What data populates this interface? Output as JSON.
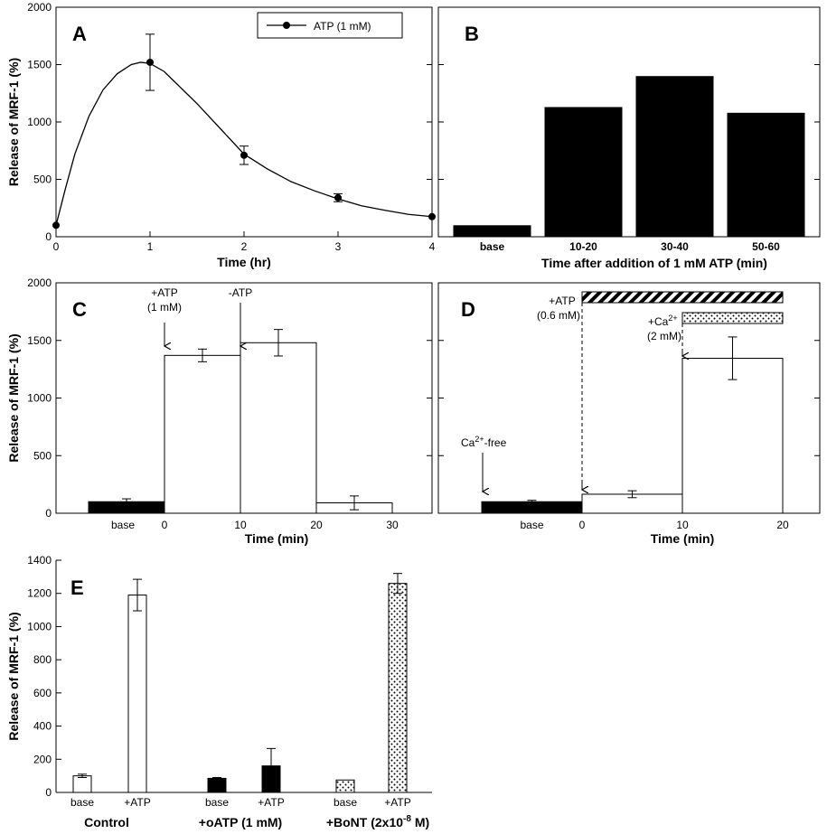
{
  "chart_data": [
    {
      "panel": "A",
      "type": "line",
      "xlabel": "Time (hr)",
      "ylabel": "Release of MRF-1 (%)",
      "xlim": [
        0,
        4
      ],
      "ylim": [
        0,
        2000
      ],
      "xticks": [
        0,
        1,
        2,
        3,
        4
      ],
      "yticks": [
        0,
        500,
        1000,
        1500,
        2000
      ],
      "legend": "ATP (1 mM)",
      "legend_position": "top-right",
      "series": [
        {
          "x": [
            0,
            1,
            2,
            3,
            4
          ],
          "y": [
            100,
            1520,
            710,
            340,
            175
          ],
          "error": [
            0,
            245,
            80,
            35,
            0
          ]
        }
      ],
      "curve": {
        "x": [
          0,
          0.1,
          0.2,
          0.35,
          0.5,
          0.65,
          0.8,
          0.9,
          1,
          1.15,
          1.3,
          1.5,
          1.75,
          2,
          2.25,
          2.5,
          2.75,
          3,
          3.25,
          3.5,
          3.75,
          4
        ],
        "y": [
          100,
          420,
          720,
          1050,
          1280,
          1420,
          1500,
          1520,
          1510,
          1440,
          1320,
          1160,
          940,
          720,
          590,
          480,
          400,
          330,
          270,
          230,
          195,
          175
        ]
      }
    },
    {
      "panel": "B",
      "type": "bar",
      "xlabel": "Time after addition of 1 mM ATP (min)",
      "ylim": [
        0,
        2000
      ],
      "categories": [
        "base",
        "10-20",
        "30-40",
        "50-60"
      ],
      "values": [
        100,
        1130,
        1400,
        1080
      ]
    },
    {
      "panel": "C",
      "type": "bar",
      "xlabel": "Time (min)",
      "ylabel": "Release of MRF-1 (%)",
      "ylim": [
        0,
        2000
      ],
      "yticks": [
        0,
        500,
        1000,
        1500,
        2000
      ],
      "tick_labels": [
        "base",
        "0",
        "10",
        "20",
        "30"
      ],
      "bars": [
        {
          "label": "base",
          "x0": -10,
          "x1": 0,
          "value": 100,
          "error": 25,
          "fill": "black"
        },
        {
          "label": "0-10",
          "x0": 0,
          "x1": 10,
          "value": 1370,
          "error": 55,
          "fill": "white"
        },
        {
          "label": "10-20",
          "x0": 10,
          "x1": 20,
          "value": 1480,
          "error": 115,
          "fill": "white"
        },
        {
          "label": "20-30",
          "x0": 20,
          "x1": 30,
          "value": 90,
          "error": 60,
          "fill": "white"
        }
      ],
      "annotations": [
        {
          "lines": [
            "+ATP",
            "(1 mM)"
          ],
          "at": 0
        },
        {
          "lines": [
            "-ATP"
          ],
          "at": 10
        }
      ]
    },
    {
      "panel": "D",
      "type": "bar",
      "xlabel": "Time (min)",
      "ylim": [
        0,
        2000
      ],
      "tick_labels": [
        "base",
        "0",
        "10",
        "20"
      ],
      "bars": [
        {
          "label": "base",
          "x0": -10,
          "x1": 0,
          "value": 100,
          "error": 12,
          "fill": "black"
        },
        {
          "label": "0-10",
          "x0": 0,
          "x1": 10,
          "value": 165,
          "error": 30,
          "fill": "white"
        },
        {
          "label": "10-20",
          "x0": 10,
          "x1": 20,
          "value": 1345,
          "error": 185,
          "fill": "white"
        }
      ],
      "annotations": [
        {
          "lines": [
            "+ATP",
            "(0.6 mM)"
          ],
          "at": 0,
          "pattern": "hatched",
          "span": [
            0,
            20
          ]
        },
        {
          "lines": [
            "+Ca",
            "2+",
            "(2 mM)"
          ],
          "at": 10,
          "pattern": "dotted",
          "span": [
            10,
            20
          ]
        },
        {
          "lines": [
            "Ca",
            "2+",
            "-free"
          ],
          "at": -6
        }
      ]
    },
    {
      "panel": "E",
      "type": "bar",
      "ylabel": "Release of MRF-1 (%)",
      "ylim": [
        0,
        1400
      ],
      "yticks": [
        0,
        200,
        400,
        600,
        800,
        1000,
        1200,
        1400
      ],
      "groups": [
        {
          "name": "Control",
          "bars": [
            {
              "label": "base",
              "value": 100,
              "error": 10,
              "fill": "white"
            },
            {
              "label": "+ATP",
              "value": 1190,
              "error": 95,
              "fill": "white"
            }
          ]
        },
        {
          "name": "+oATP (1 mM)",
          "bars": [
            {
              "label": "base",
              "value": 85,
              "error": 5,
              "fill": "black"
            },
            {
              "label": "+ATP",
              "value": 160,
              "error": 105,
              "fill": "black"
            }
          ]
        },
        {
          "name": "+BoNT (2x10",
          "name_sup": "-8",
          "name_end": " M)",
          "bars": [
            {
              "label": "base",
              "value": 75,
              "error": 0,
              "fill": "dotted"
            },
            {
              "label": "+ATP",
              "value": 1260,
              "error": 60,
              "fill": "dotted"
            }
          ]
        }
      ]
    }
  ]
}
